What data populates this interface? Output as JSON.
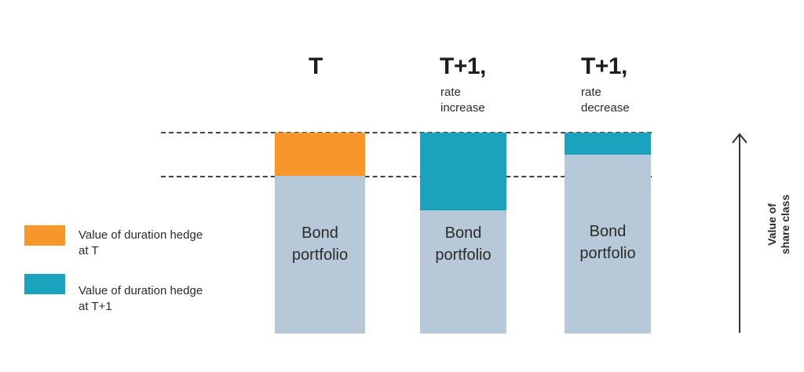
{
  "columns": [
    {
      "title": "T",
      "subtitle": [],
      "bond_label": [
        "Bond",
        "portfolio"
      ],
      "hedge_series": "Value of duration hedge at T"
    },
    {
      "title": "T+1,",
      "subtitle": [
        "rate",
        "increase"
      ],
      "bond_label": [
        "Bond",
        "portfolio"
      ],
      "hedge_series": "Value of duration hedge at T+1"
    },
    {
      "title": "T+1,",
      "subtitle": [
        "rate",
        "decrease"
      ],
      "bond_label": [
        "Bond",
        "portfolio"
      ],
      "hedge_series": "Value of duration hedge at T+1"
    }
  ],
  "legend": [
    {
      "label_lines": [
        "Value of duration hedge",
        "at T"
      ],
      "color": "#f7962b"
    },
    {
      "label_lines": [
        "Value of duration hedge",
        "at T+1"
      ],
      "color": "#1ba3bd"
    }
  ],
  "axis": {
    "label_lines": [
      "Value of",
      "share class"
    ]
  },
  "colors": {
    "bond": "#b7c8d8",
    "hedge_t": "#f7962b",
    "hedge_t1": "#1ba3bd",
    "dash": "#444444"
  }
}
